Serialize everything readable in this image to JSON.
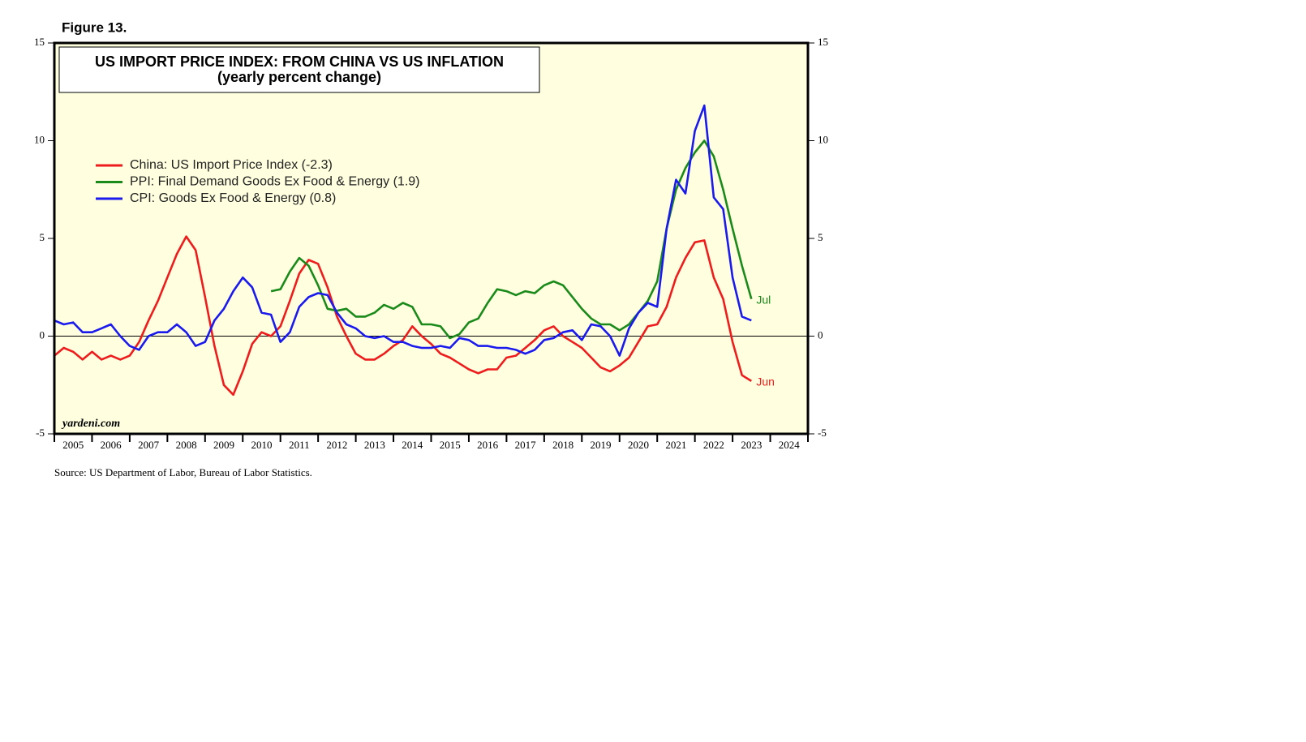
{
  "chart_data": {
    "type": "line",
    "figure_label": "Figure 13.",
    "title": "US IMPORT PRICE INDEX: FROM CHINA VS US INFLATION",
    "subtitle": "(yearly percent change)",
    "watermark": "yardeni.com",
    "source": "Source: US Department of Labor, Bureau of Labor Statistics.",
    "xlim": [
      2005,
      2025
    ],
    "xticks": [
      2005,
      2006,
      2007,
      2008,
      2009,
      2010,
      2011,
      2012,
      2013,
      2014,
      2015,
      2016,
      2017,
      2018,
      2019,
      2020,
      2021,
      2022,
      2023,
      2024,
      2025
    ],
    "xlabels": [
      {
        "value": 2005.5,
        "label": "2005"
      },
      {
        "value": 2006.5,
        "label": "2006"
      },
      {
        "value": 2007.5,
        "label": "2007"
      },
      {
        "value": 2008.5,
        "label": "2008"
      },
      {
        "value": 2009.5,
        "label": "2009"
      },
      {
        "value": 2010.5,
        "label": "2010"
      },
      {
        "value": 2011.5,
        "label": "2011"
      },
      {
        "value": 2012.5,
        "label": "2012"
      },
      {
        "value": 2013.5,
        "label": "2013"
      },
      {
        "value": 2014.5,
        "label": "2014"
      },
      {
        "value": 2015.5,
        "label": "2015"
      },
      {
        "value": 2016.5,
        "label": "2016"
      },
      {
        "value": 2017.5,
        "label": "2017"
      },
      {
        "value": 2018.5,
        "label": "2018"
      },
      {
        "value": 2019.5,
        "label": "2019"
      },
      {
        "value": 2020.5,
        "label": "2020"
      },
      {
        "value": 2021.5,
        "label": "2021"
      },
      {
        "value": 2022.5,
        "label": "2022"
      },
      {
        "value": 2023.5,
        "label": "2023"
      },
      {
        "value": 2024.5,
        "label": "2024"
      }
    ],
    "ylim": [
      -5,
      15
    ],
    "yticks": [
      -5,
      0,
      5,
      10,
      15
    ],
    "y2lim": [
      -5,
      15
    ],
    "y2ticks": [
      -5,
      0,
      5,
      10,
      15
    ],
    "x": [
      2005,
      2005.25,
      2005.5,
      2005.75,
      2006,
      2006.25,
      2006.5,
      2006.75,
      2007,
      2007.25,
      2007.5,
      2007.75,
      2008,
      2008.25,
      2008.5,
      2008.75,
      2009,
      2009.25,
      2009.5,
      2009.75,
      2010,
      2010.25,
      2010.5,
      2010.75,
      2011,
      2011.25,
      2011.5,
      2011.75,
      2012,
      2012.25,
      2012.5,
      2012.75,
      2013,
      2013.25,
      2013.5,
      2013.75,
      2014,
      2014.25,
      2014.5,
      2014.75,
      2015,
      2015.25,
      2015.5,
      2015.75,
      2016,
      2016.25,
      2016.5,
      2016.75,
      2017,
      2017.25,
      2017.5,
      2017.75,
      2018,
      2018.25,
      2018.5,
      2018.75,
      2019,
      2019.25,
      2019.5,
      2019.75,
      2020,
      2020.25,
      2020.5,
      2020.75,
      2021,
      2021.25,
      2021.5,
      2021.75,
      2022,
      2022.25,
      2022.5,
      2022.75,
      2023,
      2023.25,
      2023.5
    ],
    "series": [
      {
        "name": "China: US Import Price Index (-2.3)",
        "color": "#ee1c1c",
        "end_label": "Jun",
        "values": [
          -1.0,
          -0.6,
          -0.8,
          -1.2,
          -0.8,
          -1.2,
          -1.0,
          -1.2,
          -1.0,
          -0.3,
          0.8,
          1.8,
          3.0,
          4.2,
          5.1,
          4.4,
          2.0,
          -0.5,
          -2.5,
          -3.0,
          -1.8,
          -0.4,
          0.2,
          0.0,
          0.5,
          1.8,
          3.2,
          3.9,
          3.7,
          2.5,
          1.0,
          0.0,
          -0.9,
          -1.2,
          -1.2,
          -0.9,
          -0.5,
          -0.2,
          0.5,
          0.0,
          -0.4,
          -0.9,
          -1.1,
          -1.4,
          -1.7,
          -1.9,
          -1.7,
          -1.7,
          -1.1,
          -1.0,
          -0.6,
          -0.2,
          0.3,
          0.5,
          0.0,
          -0.3,
          -0.6,
          -1.1,
          -1.6,
          -1.8,
          -1.5,
          -1.1,
          -0.3,
          0.5,
          0.6,
          1.5,
          3.0,
          4.0,
          4.8,
          4.9,
          3.0,
          1.9,
          -0.3,
          -2.0,
          -2.3
        ]
      },
      {
        "name": "PPI: Final Demand Goods Ex Food & Energy (1.9)",
        "color": "#1a8a1a",
        "end_label": "Jul",
        "values": [
          null,
          null,
          null,
          null,
          null,
          null,
          null,
          null,
          null,
          null,
          null,
          null,
          null,
          null,
          null,
          null,
          null,
          null,
          null,
          null,
          null,
          null,
          null,
          2.3,
          2.4,
          3.3,
          4.0,
          3.6,
          2.6,
          1.4,
          1.3,
          1.4,
          1.0,
          1.0,
          1.2,
          1.6,
          1.4,
          1.7,
          1.5,
          0.6,
          0.6,
          0.5,
          -0.1,
          0.1,
          0.7,
          0.9,
          1.7,
          2.4,
          2.3,
          2.1,
          2.3,
          2.2,
          2.6,
          2.8,
          2.6,
          2.0,
          1.4,
          0.9,
          0.6,
          0.6,
          0.3,
          0.6,
          1.2,
          1.8,
          2.8,
          5.5,
          7.5,
          8.6,
          9.4,
          10.0,
          9.2,
          7.5,
          5.5,
          3.6,
          1.9
        ]
      },
      {
        "name": "CPI: Goods Ex Food & Energy (0.8)",
        "color": "#1a1aee",
        "values": [
          0.8,
          0.6,
          0.7,
          0.2,
          0.2,
          0.4,
          0.6,
          0.0,
          -0.5,
          -0.7,
          0.0,
          0.2,
          0.2,
          0.6,
          0.2,
          -0.5,
          -0.3,
          0.8,
          1.4,
          2.3,
          3.0,
          2.5,
          1.2,
          1.1,
          -0.3,
          0.2,
          1.5,
          2.0,
          2.2,
          2.1,
          1.2,
          0.6,
          0.4,
          0.0,
          -0.1,
          0.0,
          -0.3,
          -0.3,
          -0.5,
          -0.6,
          -0.6,
          -0.5,
          -0.6,
          -0.1,
          -0.2,
          -0.5,
          -0.5,
          -0.6,
          -0.6,
          -0.7,
          -0.9,
          -0.7,
          -0.2,
          -0.1,
          0.2,
          0.3,
          -0.2,
          0.6,
          0.5,
          0.0,
          -1.0,
          0.4,
          1.2,
          1.7,
          1.5,
          5.5,
          8.0,
          7.3,
          10.5,
          11.8,
          7.1,
          6.5,
          3.0,
          1.0,
          0.8
        ]
      }
    ]
  }
}
